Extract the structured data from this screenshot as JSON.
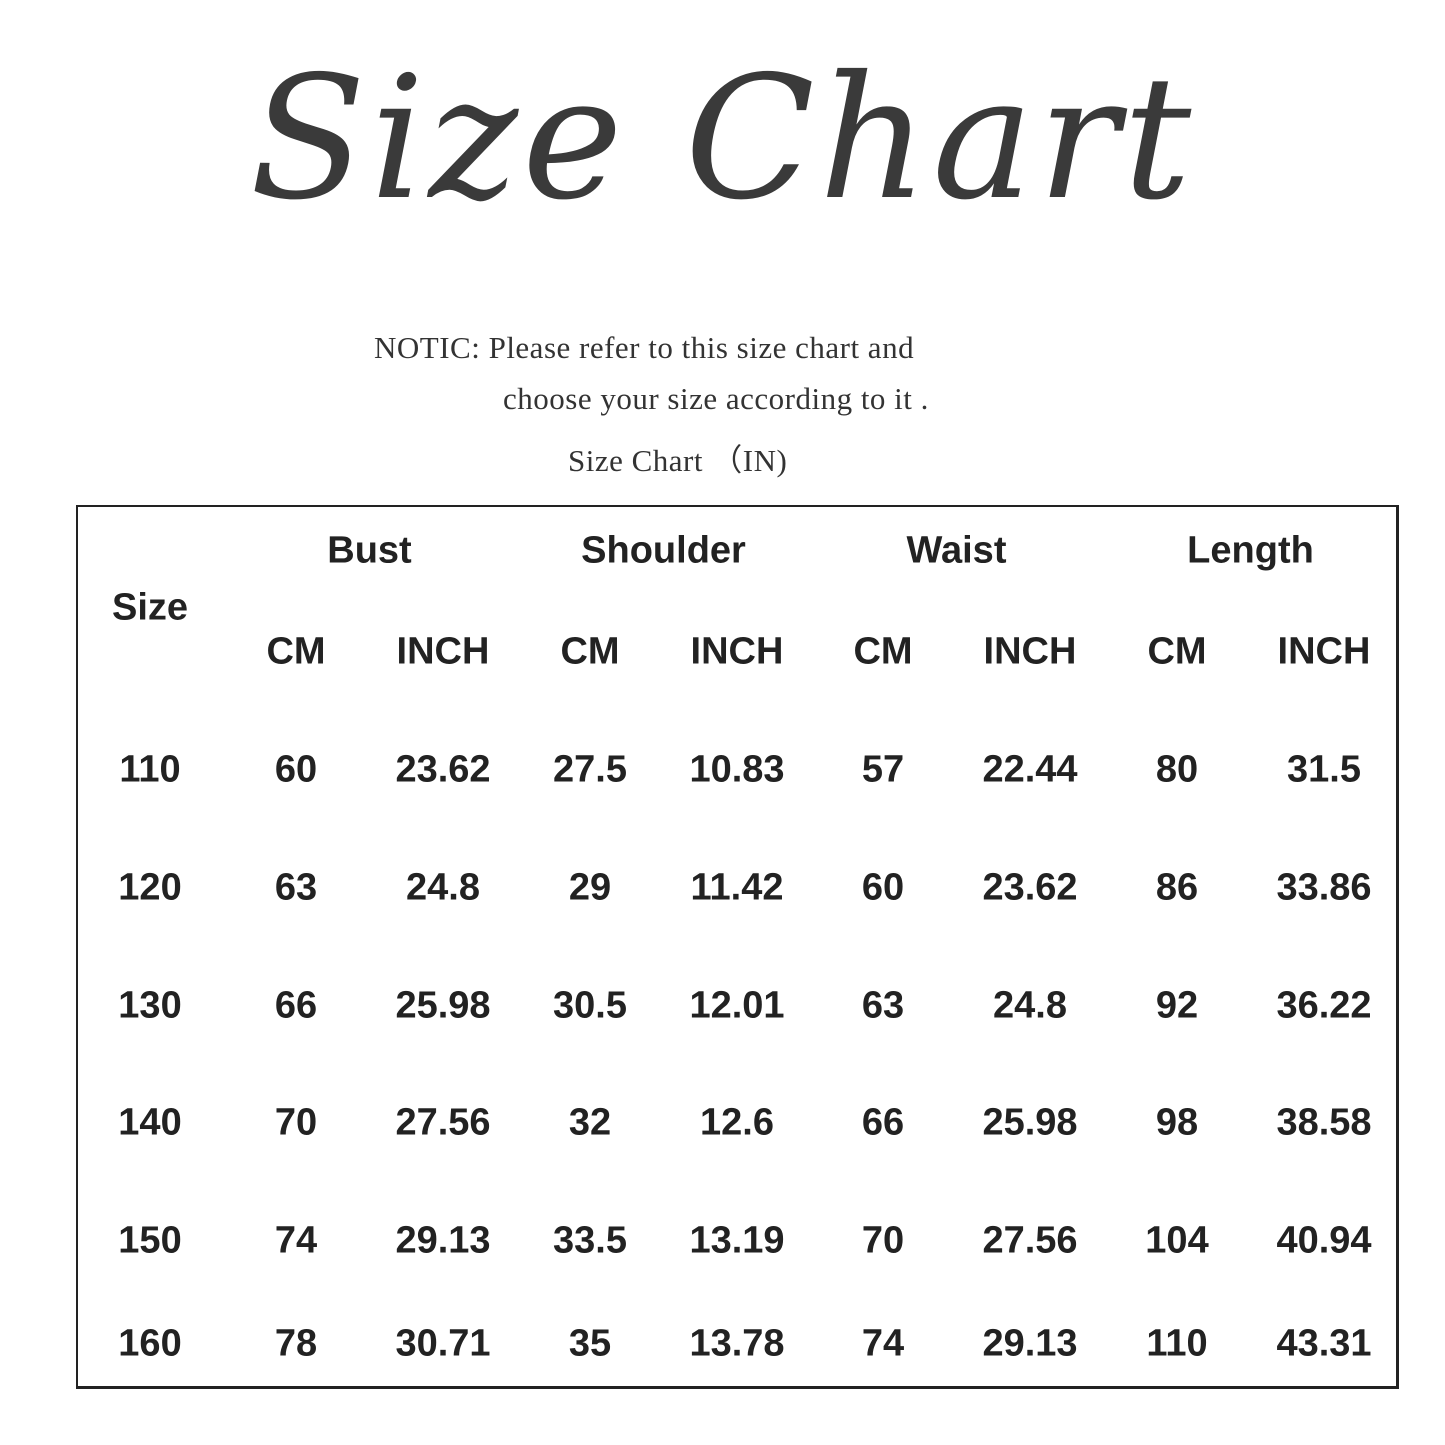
{
  "title": "Size Chart",
  "notice": {
    "line1": "NOTIC: Please refer to this size chart and",
    "line2": "choose your size according to it .",
    "unit_label": "Size Chart （IN)"
  },
  "table": {
    "size_header": "Size",
    "groups": [
      "Bust",
      "Shoulder",
      "Waist",
      "Length"
    ],
    "subheaders": [
      "CM",
      "INCH",
      "CM",
      "INCH",
      "CM",
      "INCH",
      "CM",
      "INCH"
    ],
    "rows": [
      [
        "110",
        "60",
        "23.62",
        "27.5",
        "10.83",
        "57",
        "22.44",
        "80",
        "31.5"
      ],
      [
        "120",
        "63",
        "24.8",
        "29",
        "11.42",
        "60",
        "23.62",
        "86",
        "33.86"
      ],
      [
        "130",
        "66",
        "25.98",
        "30.5",
        "12.01",
        "63",
        "24.8",
        "92",
        "36.22"
      ],
      [
        "140",
        "70",
        "27.56",
        "32",
        "12.6",
        "66",
        "25.98",
        "98",
        "38.58"
      ],
      [
        "150",
        "74",
        "29.13",
        "33.5",
        "13.19",
        "70",
        "27.56",
        "104",
        "40.94"
      ],
      [
        "160",
        "78",
        "30.71",
        "35",
        "13.78",
        "74",
        "29.13",
        "110",
        "43.31"
      ]
    ]
  }
}
